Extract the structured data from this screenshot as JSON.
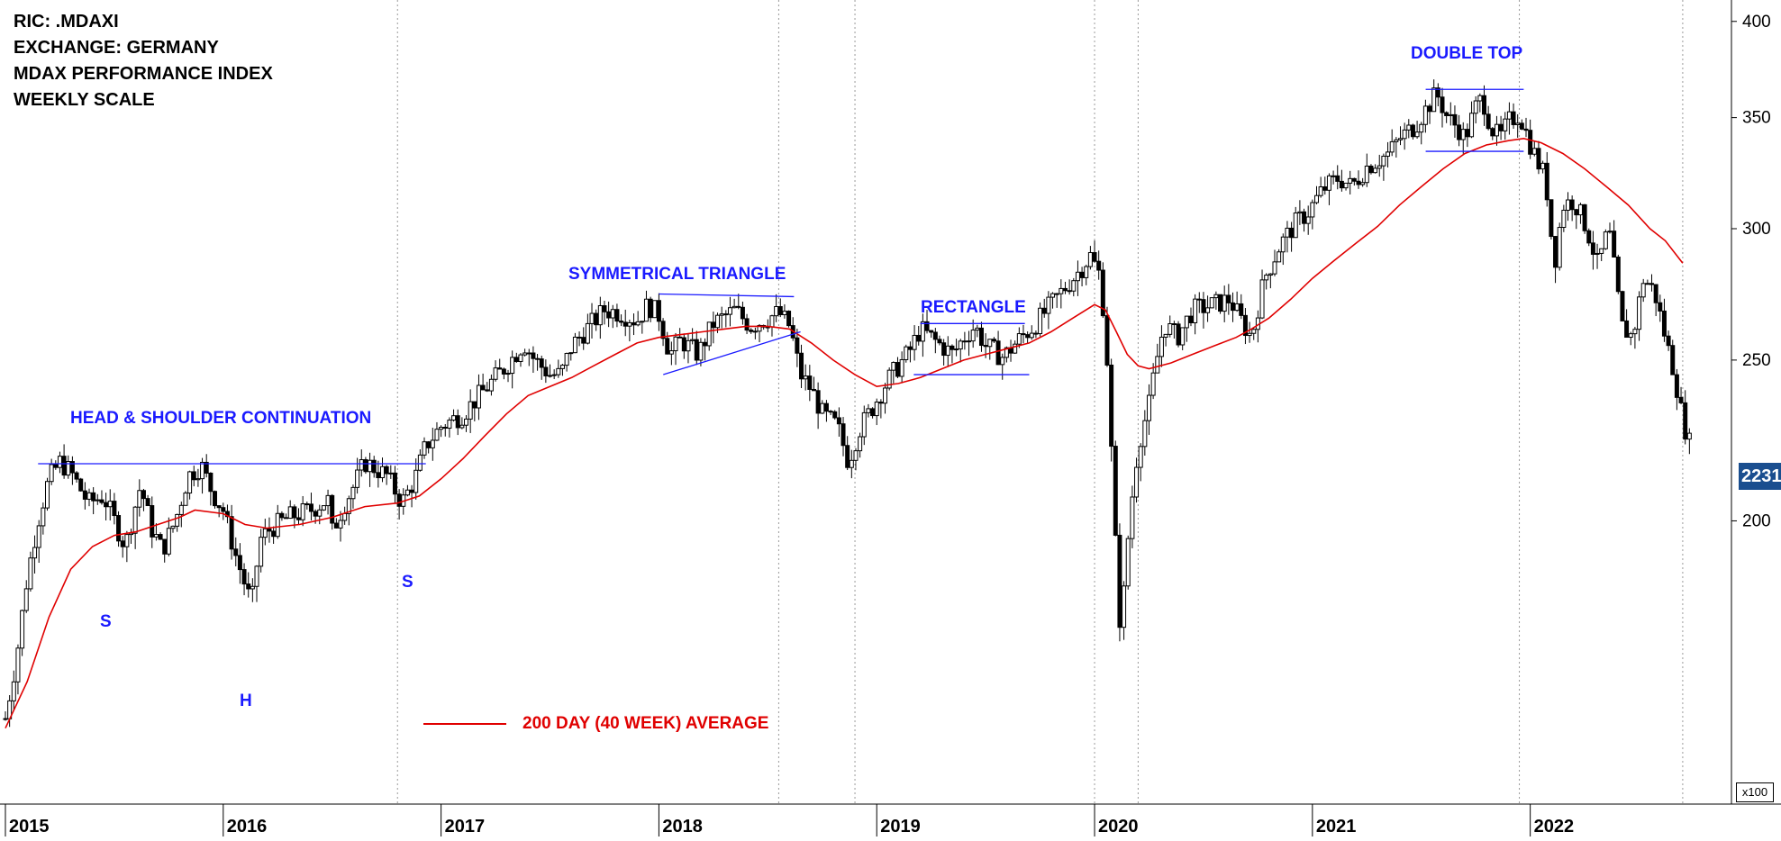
{
  "header": {
    "lines": [
      "RIC: .MDAXI",
      "EXCHANGE: GERMANY",
      "MDAX PERFORMANCE INDEX",
      "WEEKLY SCALE"
    ]
  },
  "colors": {
    "annotation": "#1a1aff",
    "moving_average": "#e00000",
    "candle_up": "#ffffff",
    "candle_down": "#000000",
    "pattern_lines": "#1a1aff",
    "last_price_badge": "#1a4e8f"
  },
  "annotations": {
    "head_shoulder": "HEAD & SHOULDER CONTINUATION",
    "left_shoulder": "S",
    "head": "H",
    "right_shoulder": "S",
    "symmetrical_triangle": "SYMMETRICAL TRIANGLE",
    "rectangle": "RECTANGLE",
    "double_top": "DOUBLE TOP"
  },
  "legend": {
    "label": "200 DAY (40 WEEK) AVERAGE"
  },
  "last_price": {
    "label": "2231"
  },
  "scale_label": "x100",
  "chart_data": {
    "type": "candlestick",
    "title": "",
    "y_scale": "log",
    "ylim": [
      135,
      410
    ],
    "xlim": [
      2015.0,
      2022.75
    ],
    "x_tick_labels": [
      "2015",
      "2016",
      "2017",
      "2018",
      "2019",
      "2020",
      "2021",
      "2022"
    ],
    "y_ticks": [
      200,
      250,
      300,
      350,
      400
    ],
    "y_tick_labels": [
      "200",
      "250",
      "300",
      "350",
      "400"
    ],
    "grid": {
      "vertical_dotted": [
        2016.8,
        2018.55,
        2018.9,
        2020.0,
        2020.2,
        2021.95,
        2022.7
      ]
    },
    "price_path": [
      [
        2015.0,
        152
      ],
      [
        2015.05,
        165
      ],
      [
        2015.1,
        185
      ],
      [
        2015.15,
        200
      ],
      [
        2015.2,
        212
      ],
      [
        2015.25,
        217
      ],
      [
        2015.3,
        214
      ],
      [
        2015.38,
        205
      ],
      [
        2015.45,
        207
      ],
      [
        2015.5,
        200
      ],
      [
        2015.55,
        193
      ],
      [
        2015.62,
        210
      ],
      [
        2015.67,
        198
      ],
      [
        2015.72,
        192
      ],
      [
        2015.78,
        200
      ],
      [
        2015.84,
        213
      ],
      [
        2015.9,
        216
      ],
      [
        2015.95,
        208
      ],
      [
        2016.0,
        203
      ],
      [
        2016.05,
        192
      ],
      [
        2016.1,
        183
      ],
      [
        2016.13,
        178
      ],
      [
        2016.17,
        195
      ],
      [
        2016.22,
        198
      ],
      [
        2016.3,
        201
      ],
      [
        2016.4,
        203
      ],
      [
        2016.48,
        206
      ],
      [
        2016.5,
        197
      ],
      [
        2016.55,
        204
      ],
      [
        2016.6,
        210
      ],
      [
        2016.65,
        217
      ],
      [
        2016.7,
        215
      ],
      [
        2016.75,
        213
      ],
      [
        2016.82,
        205
      ],
      [
        2016.88,
        212
      ],
      [
        2016.93,
        222
      ],
      [
        2017.0,
        228
      ],
      [
        2017.1,
        232
      ],
      [
        2017.2,
        240
      ],
      [
        2017.3,
        248
      ],
      [
        2017.38,
        256
      ],
      [
        2017.43,
        250
      ],
      [
        2017.5,
        245
      ],
      [
        2017.55,
        245
      ],
      [
        2017.6,
        255
      ],
      [
        2017.68,
        262
      ],
      [
        2017.75,
        268
      ],
      [
        2017.82,
        267
      ],
      [
        2017.9,
        264
      ],
      [
        2017.95,
        270
      ],
      [
        2018.0,
        266
      ],
      [
        2018.05,
        252
      ],
      [
        2018.1,
        257
      ],
      [
        2018.18,
        252
      ],
      [
        2018.25,
        263
      ],
      [
        2018.35,
        268
      ],
      [
        2018.42,
        262
      ],
      [
        2018.5,
        265
      ],
      [
        2018.55,
        267
      ],
      [
        2018.6,
        262
      ],
      [
        2018.65,
        245
      ],
      [
        2018.7,
        240
      ],
      [
        2018.75,
        232
      ],
      [
        2018.82,
        228
      ],
      [
        2018.87,
        217
      ],
      [
        2018.92,
        227
      ],
      [
        2018.98,
        234
      ],
      [
        2019.05,
        243
      ],
      [
        2019.1,
        248
      ],
      [
        2019.15,
        253
      ],
      [
        2019.2,
        261
      ],
      [
        2019.28,
        256
      ],
      [
        2019.35,
        252
      ],
      [
        2019.4,
        258
      ],
      [
        2019.45,
        262
      ],
      [
        2019.5,
        255
      ],
      [
        2019.58,
        251
      ],
      [
        2019.65,
        257
      ],
      [
        2019.72,
        262
      ],
      [
        2019.8,
        270
      ],
      [
        2019.87,
        277
      ],
      [
        2019.93,
        283
      ],
      [
        2019.98,
        289
      ],
      [
        2020.02,
        282
      ],
      [
        2020.05,
        262
      ],
      [
        2020.09,
        200
      ],
      [
        2020.12,
        170
      ],
      [
        2020.16,
        200
      ],
      [
        2020.2,
        222
      ],
      [
        2020.25,
        235
      ],
      [
        2020.28,
        248
      ],
      [
        2020.32,
        263
      ],
      [
        2020.38,
        258
      ],
      [
        2020.45,
        268
      ],
      [
        2020.55,
        270
      ],
      [
        2020.62,
        272
      ],
      [
        2020.68,
        263
      ],
      [
        2020.72,
        258
      ],
      [
        2020.78,
        280
      ],
      [
        2020.85,
        293
      ],
      [
        2020.92,
        302
      ],
      [
        2020.98,
        307
      ],
      [
        2021.05,
        317
      ],
      [
        2021.12,
        322
      ],
      [
        2021.18,
        318
      ],
      [
        2021.25,
        327
      ],
      [
        2021.3,
        330
      ],
      [
        2021.35,
        333
      ],
      [
        2021.4,
        340
      ],
      [
        2021.47,
        346
      ],
      [
        2021.52,
        354
      ],
      [
        2021.57,
        362
      ],
      [
        2021.62,
        350
      ],
      [
        2021.67,
        345
      ],
      [
        2021.7,
        340
      ],
      [
        2021.75,
        355
      ],
      [
        2021.78,
        360
      ],
      [
        2021.82,
        345
      ],
      [
        2021.86,
        340
      ],
      [
        2021.9,
        348
      ],
      [
        2021.95,
        352
      ],
      [
        2021.99,
        340
      ],
      [
        2022.03,
        330
      ],
      [
        2022.07,
        322
      ],
      [
        2022.11,
        285
      ],
      [
        2022.15,
        310
      ],
      [
        2022.2,
        312
      ],
      [
        2022.26,
        300
      ],
      [
        2022.31,
        285
      ],
      [
        2022.36,
        300
      ],
      [
        2022.42,
        262
      ],
      [
        2022.47,
        258
      ],
      [
        2022.52,
        280
      ],
      [
        2022.57,
        275
      ],
      [
        2022.62,
        258
      ],
      [
        2022.66,
        246
      ],
      [
        2022.7,
        230
      ],
      [
        2022.73,
        223
      ]
    ],
    "moving_average_path": [
      [
        2015.0,
        150
      ],
      [
        2015.1,
        160
      ],
      [
        2015.2,
        175
      ],
      [
        2015.3,
        187
      ],
      [
        2015.4,
        193
      ],
      [
        2015.5,
        196
      ],
      [
        2015.6,
        197
      ],
      [
        2015.7,
        199
      ],
      [
        2015.8,
        201
      ],
      [
        2015.87,
        203
      ],
      [
        2016.0,
        202
      ],
      [
        2016.1,
        199
      ],
      [
        2016.2,
        198
      ],
      [
        2016.35,
        199
      ],
      [
        2016.5,
        201
      ],
      [
        2016.65,
        204
      ],
      [
        2016.8,
        205
      ],
      [
        2016.9,
        207
      ],
      [
        2017.0,
        212
      ],
      [
        2017.1,
        218
      ],
      [
        2017.2,
        225
      ],
      [
        2017.3,
        232
      ],
      [
        2017.4,
        238
      ],
      [
        2017.5,
        241
      ],
      [
        2017.6,
        244
      ],
      [
        2017.7,
        248
      ],
      [
        2017.8,
        252
      ],
      [
        2017.9,
        256
      ],
      [
        2018.0,
        258
      ],
      [
        2018.1,
        259
      ],
      [
        2018.2,
        260
      ],
      [
        2018.3,
        261
      ],
      [
        2018.4,
        262
      ],
      [
        2018.5,
        262
      ],
      [
        2018.6,
        261
      ],
      [
        2018.7,
        256
      ],
      [
        2018.8,
        250
      ],
      [
        2018.9,
        245
      ],
      [
        2019.0,
        241
      ],
      [
        2019.1,
        242
      ],
      [
        2019.2,
        244
      ],
      [
        2019.3,
        247
      ],
      [
        2019.4,
        250
      ],
      [
        2019.5,
        252
      ],
      [
        2019.6,
        254
      ],
      [
        2019.7,
        256
      ],
      [
        2019.8,
        260
      ],
      [
        2019.9,
        265
      ],
      [
        2020.0,
        270
      ],
      [
        2020.05,
        268
      ],
      [
        2020.1,
        260
      ],
      [
        2020.15,
        252
      ],
      [
        2020.2,
        248
      ],
      [
        2020.25,
        247
      ],
      [
        2020.35,
        249
      ],
      [
        2020.45,
        252
      ],
      [
        2020.55,
        255
      ],
      [
        2020.65,
        258
      ],
      [
        2020.72,
        261
      ],
      [
        2020.8,
        265
      ],
      [
        2020.9,
        272
      ],
      [
        2021.0,
        280
      ],
      [
        2021.1,
        287
      ],
      [
        2021.2,
        294
      ],
      [
        2021.3,
        301
      ],
      [
        2021.4,
        310
      ],
      [
        2021.5,
        318
      ],
      [
        2021.6,
        326
      ],
      [
        2021.7,
        333
      ],
      [
        2021.8,
        337
      ],
      [
        2021.9,
        339
      ],
      [
        2021.97,
        340
      ],
      [
        2022.05,
        338
      ],
      [
        2022.15,
        333
      ],
      [
        2022.25,
        326
      ],
      [
        2022.35,
        318
      ],
      [
        2022.45,
        310
      ],
      [
        2022.55,
        300
      ],
      [
        2022.62,
        295
      ],
      [
        2022.7,
        286
      ]
    ],
    "pattern_lines": {
      "neckline": [
        [
          2015.15,
          216.5
        ],
        [
          2016.93,
          216.5
        ]
      ],
      "triangle_top": [
        [
          2018.0,
          274
        ],
        [
          2018.62,
          273
        ]
      ],
      "triangle_bottom": [
        [
          2018.02,
          245
        ],
        [
          2018.65,
          260
        ]
      ],
      "rectangle_top": [
        [
          2019.2,
          263
        ],
        [
          2019.68,
          263
        ]
      ],
      "rectangle_bottom": [
        [
          2019.17,
          245
        ],
        [
          2019.7,
          245
        ]
      ],
      "double_top_peak": [
        [
          2021.52,
          364
        ],
        [
          2021.97,
          364
        ]
      ],
      "double_top_neckline": [
        [
          2021.52,
          334
        ],
        [
          2021.97,
          334
        ]
      ]
    },
    "series": [
      {
        "values_from": "price_path"
      },
      {
        "name": "200 DAY (40 WEEK) AVERAGE",
        "values_from": "moving_average_path"
      }
    ]
  }
}
